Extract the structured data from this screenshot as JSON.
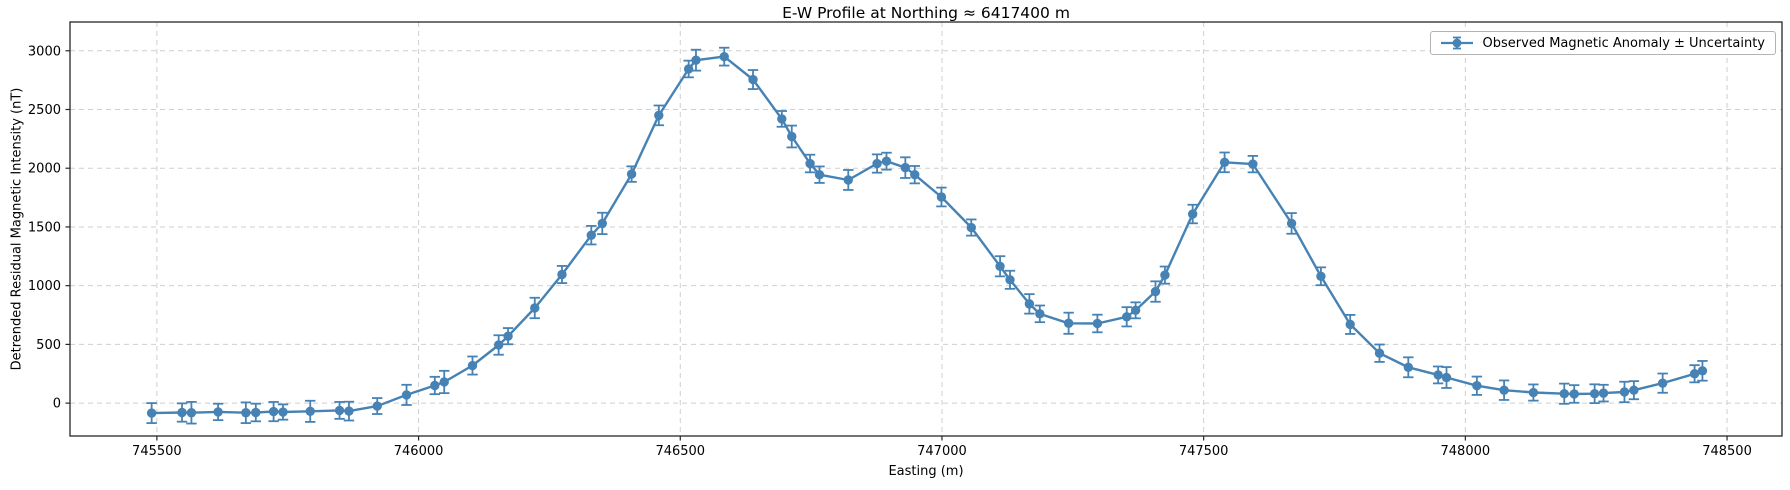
{
  "figure": {
    "background": "#ffffff"
  },
  "chart_data": {
    "type": "line",
    "title": "E-W Profile at Northing ≈ 6417400 m",
    "xlabel": "Easting (m)",
    "ylabel": "Detrended Residual Magnetic Intensity (nT)",
    "legend": {
      "label": "Observed Magnetic Anomaly ± Uncertainty",
      "position": "upper right",
      "frame": true
    },
    "grid": true,
    "grid_style": "dashed",
    "xlim": [
      745334,
      748605
    ],
    "ylim": [
      -280,
      3245
    ],
    "xticks": [
      745500,
      746000,
      746500,
      747000,
      747500,
      748000,
      748500
    ],
    "yticks": [
      0,
      500,
      1000,
      1500,
      2000,
      2500,
      3000
    ],
    "colors": {
      "series": "#4682B4",
      "grid": "#cfcfcf",
      "spine": "#262626",
      "tick_label": "#000000"
    },
    "series": [
      {
        "name": "Observed Magnetic Anomaly ± Uncertainty",
        "marker": "circle",
        "errorbars": true,
        "x": [
          745490,
          745548,
          745566,
          745617,
          745670,
          745689,
          745723,
          745741,
          745793,
          745849,
          745867,
          745921,
          745977,
          746031,
          746049,
          746103,
          746153,
          746171,
          746222,
          746274,
          746330,
          746351,
          746407,
          746459,
          746516,
          746530,
          746584,
          746639,
          746694,
          746713,
          746748,
          746766,
          746821,
          746876,
          746894,
          746930,
          746948,
          746999,
          747056,
          747111,
          747130,
          747167,
          747187,
          747242,
          747297,
          747353,
          747370,
          747408,
          747426,
          747479,
          747540,
          747594,
          747668,
          747724,
          747780,
          747836,
          747891,
          747948,
          747964,
          748022,
          748074,
          748130,
          748189,
          748208,
          748247,
          748264,
          748304,
          748322,
          748377,
          748438,
          748453
        ],
        "y": [
          -85,
          -80,
          -82,
          -75,
          -82,
          -80,
          -72,
          -76,
          -70,
          -62,
          -68,
          -25,
          70,
          150,
          180,
          320,
          495,
          570,
          810,
          1095,
          1430,
          1530,
          1950,
          2450,
          2845,
          2920,
          2950,
          2755,
          2420,
          2270,
          2040,
          1945,
          1900,
          2040,
          2060,
          2005,
          1945,
          1755,
          1495,
          1165,
          1050,
          845,
          760,
          680,
          678,
          735,
          790,
          950,
          1090,
          1610,
          2050,
          2035,
          1530,
          1080,
          670,
          425,
          305,
          240,
          218,
          148,
          110,
          90,
          80,
          78,
          80,
          85,
          95,
          110,
          170,
          250,
          275
        ],
        "yerr": [
          85,
          78,
          92,
          70,
          88,
          75,
          82,
          65,
          90,
          72,
          80,
          68,
          86,
          74,
          95,
          77,
          83,
          69,
          87,
          73,
          79,
          91,
          66,
          84,
          71,
          89,
          76,
          81,
          67,
          93,
          75,
          70,
          85,
          78,
          72,
          88,
          74,
          80,
          69,
          86,
          77,
          83,
          71,
          90,
          75,
          82,
          68,
          87,
          73,
          79,
          84,
          70,
          88,
          76,
          81,
          74,
          85,
          72,
          89,
          78,
          83,
          69,
          86,
          75,
          80,
          71,
          87,
          77,
          82,
          73,
          84
        ]
      }
    ]
  }
}
